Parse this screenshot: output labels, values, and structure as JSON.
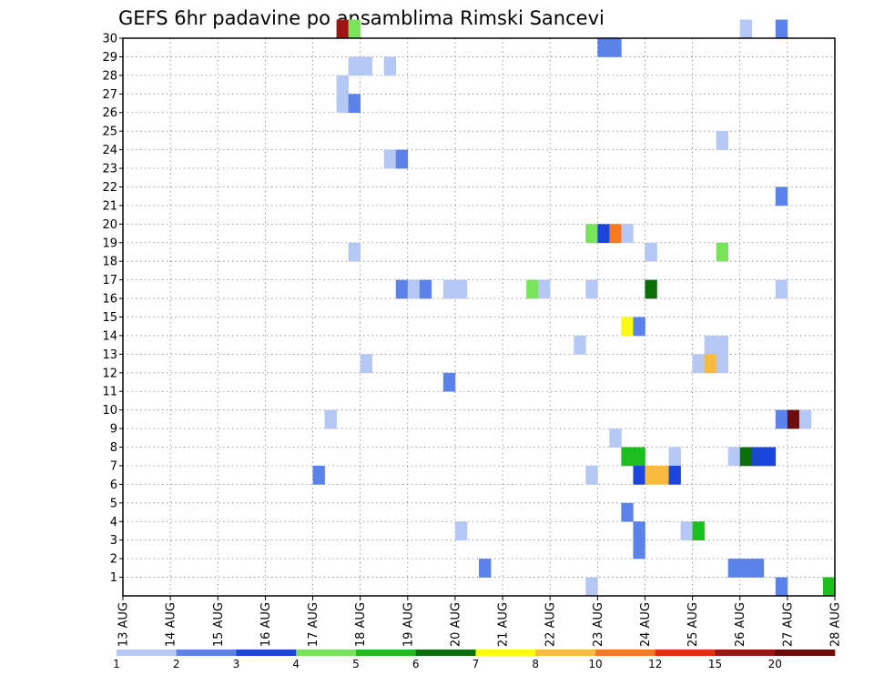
{
  "chart_data": {
    "type": "heatmap",
    "title": "GEFS 6hr padavine po ansamblima Rimski Sancevi",
    "xlabel": "",
    "ylabel": "",
    "x_tick_labels": [
      "13 AUG",
      "14 AUG",
      "15 AUG",
      "16 AUG",
      "17 AUG",
      "18 AUG",
      "19 AUG",
      "20 AUG",
      "21 AUG",
      "22 AUG",
      "23 AUG",
      "24 AUG",
      "25 AUG",
      "26 AUG",
      "27 AUG",
      "28 AUG"
    ],
    "y_tick_labels": [
      "1",
      "2",
      "3",
      "4",
      "5",
      "6",
      "7",
      "8",
      "9",
      "10",
      "11",
      "12",
      "13",
      "14",
      "15",
      "16",
      "17",
      "18",
      "19",
      "20",
      "21",
      "22",
      "23",
      "24",
      "25",
      "26",
      "27",
      "28",
      "29",
      "30"
    ],
    "xlim_days": [
      13,
      28
    ],
    "ylim": [
      0,
      30
    ],
    "grid": true,
    "legend": {
      "placement": "bottom",
      "thresholds": [
        "1",
        "2",
        "3",
        "4",
        "5",
        "6",
        "7",
        "8",
        "10",
        "12",
        "15",
        "20"
      ],
      "colors": [
        "#b4c7f5",
        "#5a82ea",
        "#1c45dc",
        "#78e45c",
        "#1ebe1e",
        "#0a6e0a",
        "#fafa14",
        "#faba3c",
        "#fa781e",
        "#dc3214",
        "#a01414",
        "#6e0a0a"
      ]
    },
    "cells": [
      {
        "member": 30,
        "day": 17.5,
        "bin": 10
      },
      {
        "member": 30,
        "day": 17.75,
        "bin": 3
      },
      {
        "member": 30,
        "day": 26.0,
        "bin": 0
      },
      {
        "member": 30,
        "day": 26.75,
        "bin": 1
      },
      {
        "member": 29,
        "day": 23.0,
        "bin": 1
      },
      {
        "member": 29,
        "day": 23.25,
        "bin": 1
      },
      {
        "member": 28,
        "day": 17.75,
        "bin": 0
      },
      {
        "member": 28,
        "day": 18.0,
        "bin": 0
      },
      {
        "member": 28,
        "day": 18.5,
        "bin": 0
      },
      {
        "member": 27,
        "day": 17.5,
        "bin": 0
      },
      {
        "member": 26,
        "day": 17.5,
        "bin": 0
      },
      {
        "member": 26,
        "day": 17.75,
        "bin": 1
      },
      {
        "member": 24,
        "day": 25.5,
        "bin": 0
      },
      {
        "member": 23,
        "day": 18.5,
        "bin": 0
      },
      {
        "member": 23,
        "day": 18.75,
        "bin": 1
      },
      {
        "member": 21,
        "day": 26.75,
        "bin": 1
      },
      {
        "member": 19,
        "day": 22.75,
        "bin": 3
      },
      {
        "member": 19,
        "day": 23.0,
        "bin": 2
      },
      {
        "member": 19,
        "day": 23.25,
        "bin": 8
      },
      {
        "member": 19,
        "day": 23.5,
        "bin": 0
      },
      {
        "member": 18,
        "day": 17.75,
        "bin": 0
      },
      {
        "member": 18,
        "day": 24.0,
        "bin": 0
      },
      {
        "member": 18,
        "day": 25.5,
        "bin": 3
      },
      {
        "member": 16,
        "day": 18.75,
        "bin": 1
      },
      {
        "member": 16,
        "day": 19.0,
        "bin": 0
      },
      {
        "member": 16,
        "day": 19.25,
        "bin": 1
      },
      {
        "member": 16,
        "day": 19.75,
        "bin": 0
      },
      {
        "member": 16,
        "day": 20.0,
        "bin": 0
      },
      {
        "member": 16,
        "day": 21.5,
        "bin": 3
      },
      {
        "member": 16,
        "day": 21.75,
        "bin": 0
      },
      {
        "member": 16,
        "day": 22.75,
        "bin": 0
      },
      {
        "member": 16,
        "day": 24.0,
        "bin": 5
      },
      {
        "member": 16,
        "day": 26.75,
        "bin": 0
      },
      {
        "member": 14,
        "day": 23.5,
        "bin": 6
      },
      {
        "member": 14,
        "day": 23.75,
        "bin": 1
      },
      {
        "member": 13,
        "day": 22.5,
        "bin": 0
      },
      {
        "member": 13,
        "day": 25.25,
        "bin": 0
      },
      {
        "member": 13,
        "day": 25.5,
        "bin": 0
      },
      {
        "member": 12,
        "day": 18.0,
        "bin": 0
      },
      {
        "member": 12,
        "day": 25.0,
        "bin": 0
      },
      {
        "member": 12,
        "day": 25.25,
        "bin": 7
      },
      {
        "member": 12,
        "day": 25.5,
        "bin": 0
      },
      {
        "member": 11,
        "day": 19.75,
        "bin": 1
      },
      {
        "member": 9,
        "day": 17.25,
        "bin": 0
      },
      {
        "member": 9,
        "day": 26.75,
        "bin": 1
      },
      {
        "member": 9,
        "day": 27.0,
        "bin": 11
      },
      {
        "member": 9,
        "day": 27.25,
        "bin": 0
      },
      {
        "member": 8,
        "day": 23.25,
        "bin": 0
      },
      {
        "member": 7,
        "day": 23.5,
        "bin": 4
      },
      {
        "member": 7,
        "day": 23.75,
        "bin": 4
      },
      {
        "member": 7,
        "day": 24.5,
        "bin": 0
      },
      {
        "member": 7,
        "day": 25.75,
        "bin": 0
      },
      {
        "member": 7,
        "day": 26.0,
        "bin": 5
      },
      {
        "member": 7,
        "day": 26.25,
        "bin": 2
      },
      {
        "member": 7,
        "day": 26.5,
        "bin": 2
      },
      {
        "member": 6,
        "day": 17.0,
        "bin": 1
      },
      {
        "member": 6,
        "day": 22.75,
        "bin": 0
      },
      {
        "member": 6,
        "day": 23.75,
        "bin": 2
      },
      {
        "member": 6,
        "day": 24.0,
        "bin": 7
      },
      {
        "member": 6,
        "day": 24.25,
        "bin": 7
      },
      {
        "member": 6,
        "day": 24.5,
        "bin": 2
      },
      {
        "member": 4,
        "day": 23.5,
        "bin": 1
      },
      {
        "member": 3,
        "day": 20.0,
        "bin": 0
      },
      {
        "member": 3,
        "day": 23.75,
        "bin": 1
      },
      {
        "member": 3,
        "day": 24.75,
        "bin": 0
      },
      {
        "member": 3,
        "day": 25.0,
        "bin": 4
      },
      {
        "member": 2,
        "day": 23.75,
        "bin": 1
      },
      {
        "member": 1,
        "day": 20.5,
        "bin": 1
      },
      {
        "member": 1,
        "day": 25.75,
        "bin": 1
      },
      {
        "member": 1,
        "day": 26.0,
        "bin": 1
      },
      {
        "member": 1,
        "day": 26.25,
        "bin": 1
      },
      {
        "member": 0,
        "day": 22.75,
        "bin": 0
      },
      {
        "member": 0,
        "day": 26.75,
        "bin": 1
      },
      {
        "member": 0,
        "day": 27.75,
        "bin": 4
      }
    ]
  }
}
